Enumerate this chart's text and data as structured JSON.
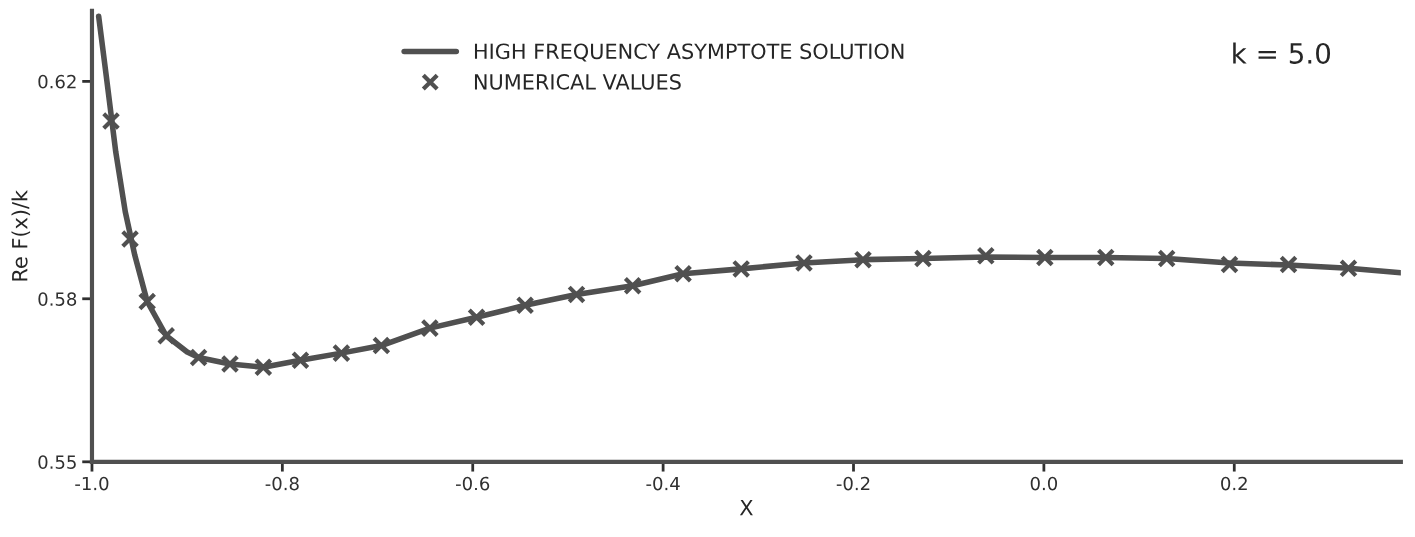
{
  "chart_data": {
    "type": "line",
    "xlabel": "X",
    "ylabel": "Re F(x)/k",
    "annotations": [
      "k = 5.0"
    ],
    "xlim": [
      -1.0,
      0.375
    ],
    "xticks": [
      {
        "value": -1.0,
        "label": "-1.0"
      },
      -0.8,
      -0.6,
      -0.4,
      -0.2,
      {
        "value": 0.0,
        "label": "0.0"
      },
      0.2
    ],
    "ylim": [
      0.55,
      0.633
    ],
    "yticks": [
      0.62,
      0.58,
      0.55
    ],
    "grid": false,
    "legend": "top",
    "series": [
      {
        "name": "HIGH FREQUENCY ASYMPTOTE SOLUTION",
        "color": "#505050",
        "line_style": "solid",
        "marker": "none",
        "x": [
          -0.993,
          -0.985,
          -0.975,
          -0.965,
          -0.955,
          -0.942,
          -0.922,
          -0.9,
          -0.888,
          -0.855,
          -0.82,
          -0.781,
          -0.738,
          -0.696,
          -0.645,
          -0.596,
          -0.545,
          -0.491,
          -0.432,
          -0.379,
          -0.318,
          -0.252,
          -0.19,
          -0.127,
          -0.061,
          0.001,
          0.065,
          0.129,
          0.195,
          0.257,
          0.32,
          0.375
        ],
        "values": [
          0.632,
          0.621,
          0.607,
          0.596,
          0.588,
          0.5795,
          0.5732,
          0.5702,
          0.5692,
          0.568,
          0.5674,
          0.5687,
          0.57,
          0.5714,
          0.5746,
          0.5766,
          0.5788,
          0.5808,
          0.5824,
          0.5846,
          0.5855,
          0.5866,
          0.5872,
          0.5874,
          0.5877,
          0.5876,
          0.5876,
          0.5874,
          0.5866,
          0.5862,
          0.5856,
          0.5848
        ]
      },
      {
        "name": "NUMERICAL VALUES",
        "type": "scatter",
        "color": "#505050",
        "marker": "cross",
        "x": [
          -0.98,
          -0.96,
          -0.942,
          -0.922,
          -0.888,
          -0.855,
          -0.82,
          -0.781,
          -0.738,
          -0.696,
          -0.645,
          -0.596,
          -0.545,
          -0.491,
          -0.432,
          -0.379,
          -0.318,
          -0.252,
          -0.19,
          -0.127,
          -0.061,
          0.001,
          0.065,
          0.129,
          0.195,
          0.257,
          0.32
        ],
        "values": [
          0.6127,
          0.591,
          0.5795,
          0.5732,
          0.5692,
          0.568,
          0.5674,
          0.5687,
          0.57,
          0.5714,
          0.5746,
          0.5766,
          0.5788,
          0.5808,
          0.5824,
          0.5846,
          0.5855,
          0.5866,
          0.5872,
          0.5874,
          0.5879,
          0.5876,
          0.5876,
          0.5874,
          0.5863,
          0.5863,
          0.5856
        ]
      }
    ]
  }
}
